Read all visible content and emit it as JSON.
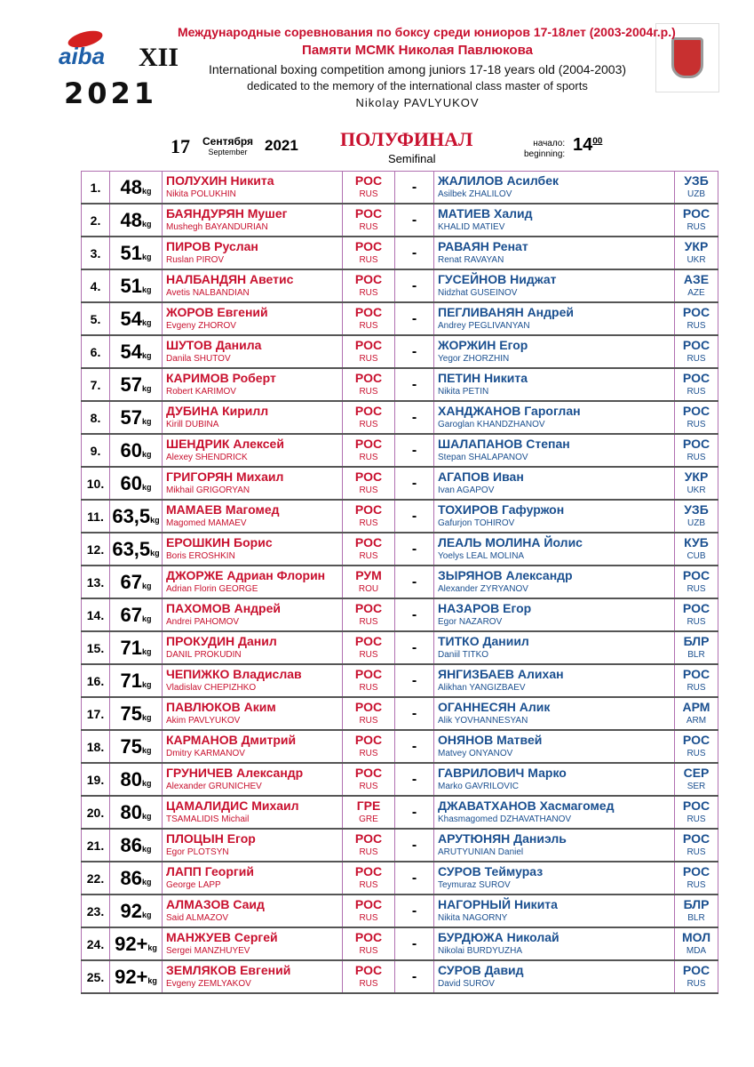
{
  "header": {
    "line1": "Международные соревнования по боксу среди юниоров 17-18лет (2003-2004г.р.)",
    "line2": "Памяти МСМК Николая Павлюкова",
    "line3": "International boxing competition among juniors 17-18 years old (2004-2003)",
    "line4": "dedicated to the memory of the international class master of sports",
    "line5": "Nikolay PAVLYUKOV",
    "logo_text": "aiba",
    "edition": "XII",
    "year_logo": "2021"
  },
  "date": {
    "day": "17",
    "month_ru": "Сентября",
    "month_en": "September",
    "year": "2021"
  },
  "stage": {
    "ru": "ПОЛУФИНАЛ",
    "en": "Semifinal"
  },
  "start": {
    "label_ru": "начало:",
    "label_en": "beginning:",
    "hour": "14",
    "minutes": "00"
  },
  "kg": "kg",
  "dash": "-",
  "bouts": [
    [
      "1.",
      "48",
      "ПОЛУХИН Никита",
      "Nikita POLUKHIN",
      "РОС",
      "RUS",
      "ЖАЛИЛОВ Асилбек",
      "Asilbek ZHALILOV",
      "УЗБ",
      "UZB"
    ],
    [
      "2.",
      "48",
      "БАЯНДУРЯН Мушег",
      "Mushegh BAYANDURIAN",
      "РОС",
      "RUS",
      "МАТИЕВ Халид",
      "KHALID MATIEV",
      "РОС",
      "RUS"
    ],
    [
      "3.",
      "51",
      "ПИРОВ Руслан",
      "Ruslan PIROV",
      "РОС",
      "RUS",
      "РАВАЯН Ренат",
      "Renat RAVAYAN",
      "УКР",
      "UKR"
    ],
    [
      "4.",
      "51",
      "НАЛБАНДЯН Аветис",
      "Avetis NALBANDIAN",
      "РОС",
      "RUS",
      "ГУСЕЙНОВ Ниджат",
      "Nidzhat GUSEINOV",
      "АЗЕ",
      "AZE"
    ],
    [
      "5.",
      "54",
      "ЖОРОВ Евгений",
      "Evgeny ZHOROV",
      "РОС",
      "RUS",
      "ПЕГЛИВАНЯН Андрей",
      "Andrey PEGLIVANYAN",
      "РОС",
      "RUS"
    ],
    [
      "6.",
      "54",
      "ШУТОВ Данила",
      "Danila SHUTOV",
      "РОС",
      "RUS",
      "ЖОРЖИН Егор",
      "Yegor ZHORZHIN",
      "РОС",
      "RUS"
    ],
    [
      "7.",
      "57",
      "КАРИМОВ Роберт",
      "Robert KARIMOV",
      "РОС",
      "RUS",
      "ПЕТИН Никита",
      "Nikita PETIN",
      "РОС",
      "RUS"
    ],
    [
      "8.",
      "57",
      "ДУБИНА Кирилл",
      "Kirill DUBINA",
      "РОС",
      "RUS",
      "ХАНДЖАНОВ Гароглан",
      "Garoglan KHANDZHANOV",
      "РОС",
      "RUS"
    ],
    [
      "9.",
      "60",
      "ШЕНДРИК Алексей",
      "Alexey SHENDRICK",
      "РОС",
      "RUS",
      "ШАЛАПАНОВ Степан",
      "Stepan SHALAPANOV",
      "РОС",
      "RUS"
    ],
    [
      "10.",
      "60",
      "ГРИГОРЯН Михаил",
      "Mikhail GRIGORYAN",
      "РОС",
      "RUS",
      "АГАПОВ Иван",
      "Ivan AGAPOV",
      "УКР",
      "UKR"
    ],
    [
      "11.",
      "63,5",
      "МАМАЕВ Магомед",
      "Magomed MAMAEV",
      "РОС",
      "RUS",
      "ТОХИРОВ Гафуржон",
      "Gafurjon TOHIROV",
      "УЗБ",
      "UZB"
    ],
    [
      "12.",
      "63,5",
      "ЕРОШКИН Борис",
      "Boris EROSHKIN",
      "РОС",
      "RUS",
      "ЛЕАЛЬ МОЛИНА   Йолис",
      "Yoelys LEAL MOLINA",
      "КУБ",
      "CUB"
    ],
    [
      "13.",
      "67",
      "ДЖОРЖЕ Адриан Флорин",
      "Adrian Florin GEORGE",
      "РУМ",
      "ROU",
      "ЗЫРЯНОВ Александр",
      "Alexander ZYRYANOV",
      "РОС",
      "RUS"
    ],
    [
      "14.",
      "67",
      "ПАХОМОВ Андрей",
      "Andrei PAHOMOV",
      "РОС",
      "RUS",
      "НАЗАРОВ Егор",
      "Egor NAZAROV",
      "РОС",
      "RUS"
    ],
    [
      "15.",
      "71",
      "ПРОКУДИН Данил",
      "DANIL PROKUDIN",
      "РОС",
      "RUS",
      "ТИТКО Даниил",
      "Daniil TITKO",
      "БЛР",
      "BLR"
    ],
    [
      "16.",
      "71",
      "ЧЕПИЖКО Владислав",
      "Vladislav CHEPIZHKO",
      "РОС",
      "RUS",
      "ЯНГИЗБАЕВ Алихан",
      "Alikhan YANGIZBAEV",
      "РОС",
      "RUS"
    ],
    [
      "17.",
      "75",
      "ПАВЛЮКОВ Аким",
      "Akim  PAVLYUKOV",
      "РОС",
      "RUS",
      "ОГАННЕСЯН Алик",
      "Alik YOVHANNESYAN",
      "АРМ",
      "ARM"
    ],
    [
      "18.",
      "75",
      "КАРМАНОВ Дмитрий",
      "Dmitry KARMANOV",
      "РОС",
      "RUS",
      "ОНЯНОВ Матвей",
      "Matvey ONYANOV",
      "РОС",
      "RUS"
    ],
    [
      "19.",
      "80",
      "ГРУНИЧЕВ Александр",
      "Alexander GRUNICHEV",
      "РОС",
      "RUS",
      "ГАВРИЛОВИЧ Марко",
      "Marko GAVRILOVIC",
      "СЕР",
      "SER"
    ],
    [
      "20.",
      "80",
      "ЦАМАЛИДИС Михаил",
      "TSAMALIDIS Michail",
      "ГРЕ",
      "GRE",
      "ДЖАВАТХАНОВ Хасмагомед",
      "Khasmagomed  DZHAVATHANOV",
      "РОС",
      "RUS"
    ],
    [
      "21.",
      "86",
      "ПЛОЦЫН Егор",
      "Egor PLOTSYN",
      "РОС",
      "RUS",
      "АРУТЮНЯН Даниэль",
      "ARUTYUNIAN Daniel",
      "РОС",
      "RUS"
    ],
    [
      "22.",
      "86",
      "ЛАПП Георгий",
      "George LAPP",
      "РОС",
      "RUS",
      "СУРОВ Теймураз",
      "Teymuraz SUROV",
      "РОС",
      "RUS"
    ],
    [
      "23.",
      "92",
      "АЛМАЗОВ Саид",
      "Said ALMAZOV",
      "РОС",
      "RUS",
      "НАГОРНЫЙ Никита",
      "Nikita NAGORNY",
      "БЛР",
      "BLR"
    ],
    [
      "24.",
      "92+",
      "МАНЖУЕВ Сергей",
      "Sergei MANZHUYEV",
      "РОС",
      "RUS",
      "БУРДЮЖА Николай",
      "Nikolai BURDYUZHA",
      "МОЛ",
      "MDA"
    ],
    [
      "25.",
      "92+",
      "ЗЕМЛЯКОВ Евгений",
      "Evgeny ZEMLYAKOV",
      "РОС",
      "RUS",
      "СУРОВ Давид",
      "David SUROV",
      "РОС",
      "RUS"
    ]
  ],
  "colors": {
    "red_corner": "#c8102e",
    "blue_corner": "#1a4f8f",
    "grid": "#b070b0"
  }
}
